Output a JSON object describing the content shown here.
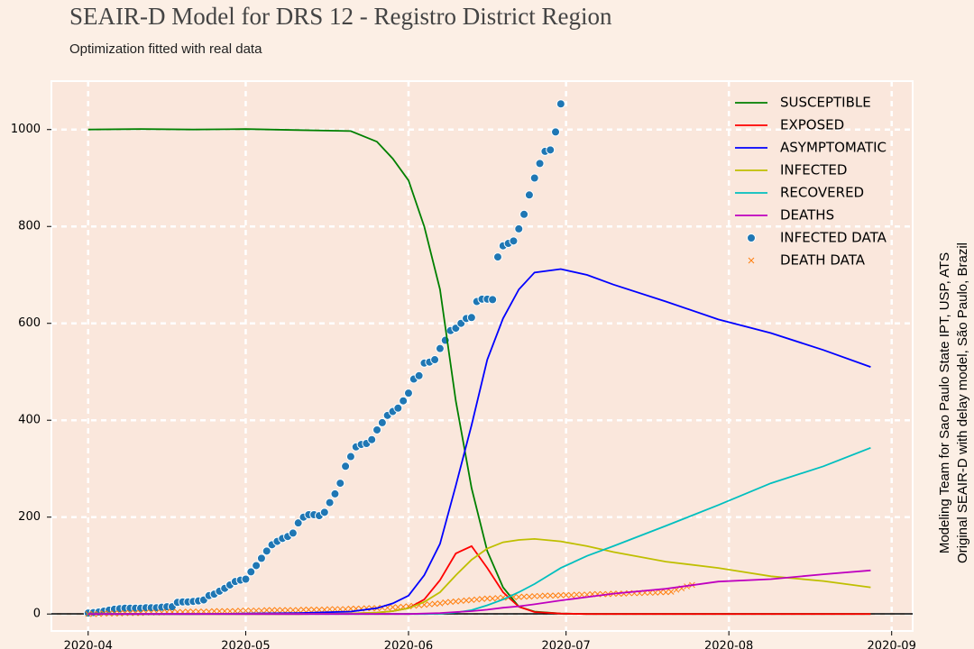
{
  "chart_data": {
    "type": "line",
    "title": "SEAIR-D Model for DRS 12 - Registro District Region",
    "subtitle": "Optimization fitted with real data",
    "annotations": [
      "Modeling Team for Sao Paulo State IPT, USP, ATS",
      "Original SEAIR-D with delay model, São Paulo, Brazil"
    ],
    "xlim": [
      -7,
      157
    ],
    "ylim": [
      -35,
      1100
    ],
    "xticks": [
      {
        "value": 0,
        "label": "2020-04"
      },
      {
        "value": 30,
        "label": "2020-05"
      },
      {
        "value": 61,
        "label": "2020-06"
      },
      {
        "value": 91,
        "label": "2020-07"
      },
      {
        "value": 122,
        "label": "2020-08"
      },
      {
        "value": 153,
        "label": "2020-09"
      }
    ],
    "yticks": [
      0,
      200,
      400,
      600,
      800,
      1000
    ],
    "grid": true,
    "legend": "upper right",
    "series": [
      {
        "name": "SUSCEPTIBLE",
        "color": "#008000",
        "kind": "line",
        "x": [
          0,
          10,
          20,
          30,
          40,
          50,
          55,
          58,
          61,
          64,
          67,
          70,
          73,
          76,
          79,
          82,
          85,
          90,
          95,
          100,
          110,
          120,
          130,
          140,
          149
        ],
        "values": [
          1000,
          1001,
          1000,
          1001,
          999,
          997,
          975,
          940,
          895,
          800,
          670,
          440,
          260,
          130,
          55,
          15,
          5,
          1,
          0,
          0,
          0,
          0,
          0,
          0,
          0
        ]
      },
      {
        "name": "EXPOSED",
        "color": "#ff0000",
        "kind": "line",
        "x": [
          0,
          10,
          20,
          30,
          40,
          50,
          55,
          58,
          61,
          64,
          67,
          70,
          73,
          76,
          79,
          82,
          85,
          90,
          95,
          100,
          110,
          120,
          130,
          140,
          149
        ],
        "values": [
          0,
          0,
          0,
          0,
          0,
          1,
          3,
          6,
          12,
          30,
          70,
          125,
          140,
          95,
          45,
          15,
          4,
          1,
          0,
          0,
          0,
          0,
          0,
          0,
          0
        ]
      },
      {
        "name": "ASYMPTOMATIC",
        "color": "#0000ff",
        "kind": "line",
        "x": [
          0,
          10,
          20,
          30,
          40,
          50,
          55,
          58,
          61,
          64,
          67,
          70,
          73,
          76,
          79,
          82,
          85,
          90,
          95,
          100,
          110,
          120,
          130,
          140,
          149
        ],
        "values": [
          0,
          0,
          0,
          1,
          2,
          5,
          12,
          22,
          38,
          80,
          145,
          265,
          390,
          525,
          610,
          670,
          705,
          712,
          700,
          680,
          645,
          608,
          580,
          545,
          510
        ]
      },
      {
        "name": "INFECTED",
        "color": "#bfbf00",
        "kind": "line",
        "x": [
          0,
          10,
          20,
          30,
          40,
          50,
          55,
          58,
          61,
          64,
          67,
          70,
          73,
          76,
          79,
          82,
          85,
          90,
          95,
          100,
          110,
          120,
          130,
          140,
          149
        ],
        "values": [
          0,
          0,
          0,
          0,
          0,
          1,
          3,
          6,
          12,
          25,
          45,
          80,
          112,
          135,
          148,
          153,
          155,
          150,
          140,
          128,
          108,
          95,
          78,
          68,
          55
        ]
      },
      {
        "name": "RECOVERED",
        "color": "#00bfbf",
        "kind": "line",
        "x": [
          0,
          10,
          20,
          30,
          40,
          50,
          55,
          58,
          61,
          64,
          67,
          70,
          73,
          76,
          79,
          82,
          85,
          90,
          95,
          100,
          110,
          120,
          130,
          140,
          149
        ],
        "values": [
          0,
          0,
          0,
          0,
          0,
          0,
          0,
          0,
          0,
          0,
          1,
          3,
          8,
          18,
          30,
          45,
          62,
          95,
          120,
          140,
          182,
          225,
          270,
          305,
          343
        ]
      },
      {
        "name": "DEATHS",
        "color": "#bf00bf",
        "kind": "line",
        "x": [
          0,
          10,
          20,
          30,
          40,
          50,
          55,
          58,
          61,
          64,
          67,
          70,
          73,
          76,
          79,
          82,
          85,
          90,
          95,
          100,
          110,
          120,
          130,
          140,
          149
        ],
        "values": [
          0,
          0,
          0,
          0,
          0,
          0,
          0,
          0,
          0,
          1,
          2,
          4,
          6,
          9,
          13,
          16,
          20,
          28,
          35,
          42,
          52,
          67,
          72,
          82,
          90
        ]
      },
      {
        "name": "INFECTED DATA",
        "color": "#1f77b4",
        "kind": "dot",
        "x": [
          0,
          1,
          2,
          3,
          4,
          5,
          6,
          7,
          8,
          9,
          10,
          11,
          12,
          13,
          14,
          15,
          16,
          17,
          18,
          19,
          20,
          21,
          22,
          23,
          24,
          25,
          26,
          27,
          28,
          29,
          30,
          31,
          32,
          33,
          34,
          35,
          36,
          37,
          38,
          39,
          40,
          41,
          42,
          43,
          44,
          45,
          46,
          47,
          48,
          49,
          50,
          51,
          52,
          53,
          54,
          55,
          56,
          57,
          58,
          59,
          60,
          61,
          62,
          63,
          64,
          65,
          66,
          67,
          68,
          69,
          70,
          71,
          72,
          73,
          74,
          75,
          76,
          77,
          78,
          79,
          80,
          81,
          82,
          83,
          84,
          85,
          86,
          87,
          88,
          89,
          90
        ],
        "values": [
          2,
          3,
          4,
          6,
          8,
          10,
          11,
          12,
          12,
          12,
          12,
          13,
          13,
          13,
          14,
          15,
          15,
          24,
          25,
          25,
          26,
          27,
          29,
          38,
          41,
          47,
          53,
          60,
          67,
          70,
          72,
          87,
          100,
          115,
          130,
          143,
          150,
          156,
          160,
          167,
          188,
          200,
          205,
          205,
          203,
          210,
          230,
          248,
          270,
          305,
          325,
          345,
          350,
          352,
          360,
          380,
          395,
          410,
          418,
          425,
          440,
          456,
          485,
          492,
          518,
          520,
          525,
          548,
          565,
          585,
          590,
          600,
          610,
          612,
          645,
          650,
          650,
          649,
          737,
          760,
          765,
          770,
          795,
          825,
          865,
          900,
          930,
          955,
          958,
          995,
          1053
        ]
      },
      {
        "name": "DEATH DATA",
        "color": "#ff7f0e",
        "kind": "cross",
        "x": [
          0,
          1,
          2,
          3,
          4,
          5,
          6,
          7,
          8,
          9,
          10,
          11,
          12,
          13,
          14,
          15,
          16,
          17,
          18,
          19,
          20,
          21,
          22,
          23,
          24,
          25,
          26,
          27,
          28,
          29,
          30,
          31,
          32,
          33,
          34,
          35,
          36,
          37,
          38,
          39,
          40,
          41,
          42,
          43,
          44,
          45,
          46,
          47,
          48,
          49,
          50,
          51,
          52,
          53,
          54,
          55,
          56,
          57,
          58,
          59,
          60,
          61,
          62,
          63,
          64,
          65,
          66,
          67,
          68,
          69,
          70,
          71,
          72,
          73,
          74,
          75,
          76,
          77,
          78,
          79,
          80,
          81,
          82,
          83,
          84,
          85,
          86,
          87,
          88,
          89,
          90,
          91,
          92,
          93,
          94,
          95,
          96,
          97,
          98,
          99,
          100,
          101,
          102,
          103,
          104,
          105,
          106,
          107,
          108,
          109,
          110,
          111,
          112,
          113,
          114,
          115
        ],
        "values": [
          0,
          0,
          0,
          1,
          1,
          1,
          1,
          2,
          2,
          2,
          2,
          3,
          3,
          3,
          3,
          4,
          4,
          4,
          4,
          5,
          5,
          5,
          5,
          5,
          6,
          6,
          6,
          6,
          6,
          7,
          7,
          7,
          7,
          7,
          8,
          8,
          8,
          8,
          8,
          8,
          8,
          9,
          9,
          9,
          9,
          9,
          10,
          10,
          10,
          10,
          11,
          11,
          11,
          12,
          12,
          12,
          13,
          13,
          14,
          14,
          15,
          16,
          17,
          18,
          19,
          20,
          21,
          22,
          24,
          25,
          26,
          27,
          28,
          29,
          30,
          31,
          32,
          32,
          33,
          34,
          34,
          35,
          35,
          36,
          36,
          37,
          37,
          38,
          38,
          38,
          39,
          39,
          39,
          40,
          40,
          40,
          41,
          41,
          41,
          41,
          42,
          42,
          42,
          43,
          43,
          43,
          44,
          44,
          44,
          45,
          45,
          46,
          50,
          53,
          57,
          60
        ]
      }
    ]
  }
}
